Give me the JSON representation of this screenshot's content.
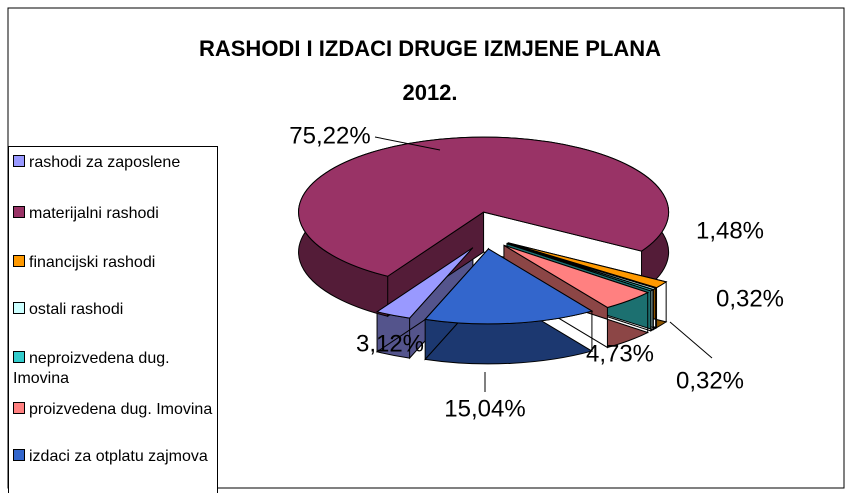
{
  "chart_data": {
    "type": "pie",
    "title": "RASHODI I IZDACI  DRUGE IZMJENE PLANA 2012.",
    "categories": [
      "rashodi za zaposlene",
      "materijalni rashodi",
      "financijski rashodi",
      "ostali rashodi",
      "neproizvedena dug. Imovina",
      "proizvedena dug. Imovina",
      "izdaci za otplatu zajmova"
    ],
    "values": [
      3.12,
      75.22,
      1.48,
      0.32,
      0.32,
      4.73,
      15.04
    ],
    "value_labels": [
      "3,12%",
      "75,22%",
      "1,48%",
      "0,32%",
      "0,32%",
      "4,73%",
      "15,04%"
    ],
    "colors": [
      "#9999ff",
      "#993366",
      "#ff9900",
      "#ccffff",
      "#33cccc",
      "#ff8080",
      "#3366cc"
    ],
    "legend": "left"
  }
}
